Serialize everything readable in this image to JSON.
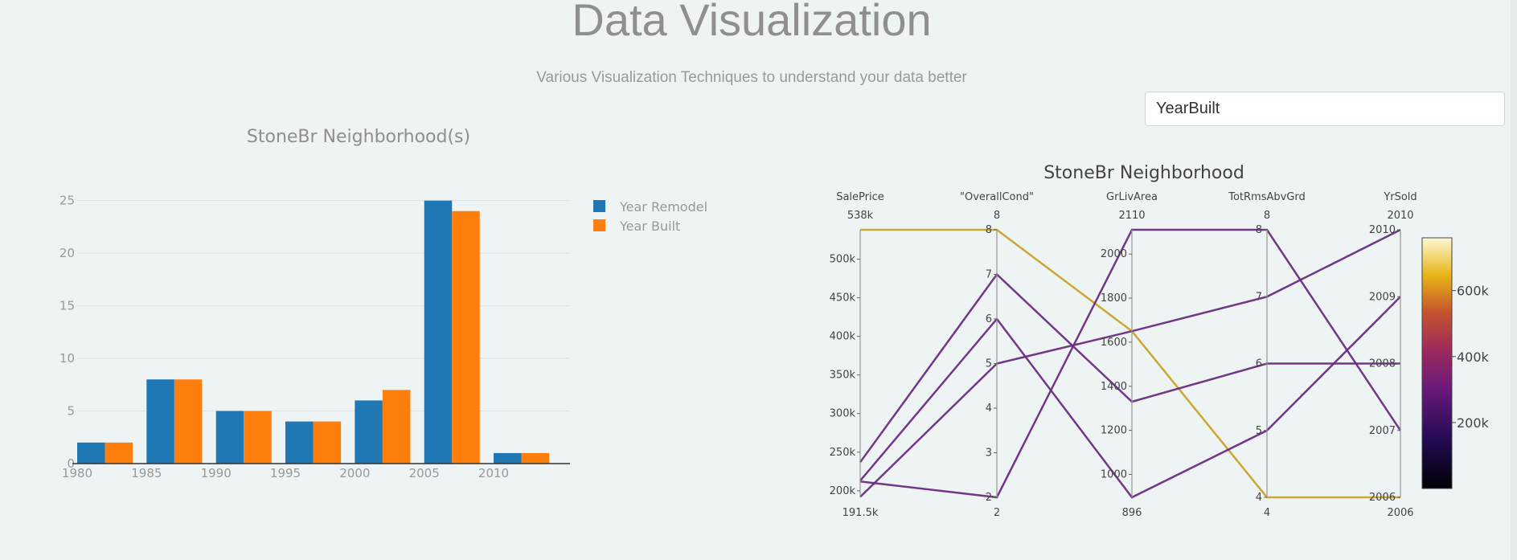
{
  "page": {
    "title": "Data Visualization",
    "subtitle": "Various Visualization Techniques to understand your data better"
  },
  "dropdown": {
    "selected": "YearBuilt"
  },
  "colors": {
    "blue": "#1f77b4",
    "orange": "#ff7f0e",
    "gold_line": "#c9a227",
    "purple_line": "#6a2c82"
  },
  "chart_data": [
    {
      "type": "bar",
      "title": "StoneBr Neighborhood(s)",
      "x": [
        1982,
        1987,
        1992,
        1997,
        2002,
        2007,
        2012
      ],
      "x_ticks": [
        1980,
        1985,
        1990,
        1995,
        2000,
        2005,
        2010
      ],
      "y_ticks": [
        0,
        5,
        10,
        15,
        20,
        25
      ],
      "ylim": [
        0,
        26.5
      ],
      "xlim": [
        1980,
        2015.5
      ],
      "grid": true,
      "legend_position": "top-right",
      "series": [
        {
          "name": "Year Remodel",
          "values": [
            2,
            8,
            5,
            4,
            6,
            25,
            1
          ]
        },
        {
          "name": "Year Built",
          "values": [
            2,
            8,
            5,
            4,
            7,
            24,
            1
          ]
        }
      ]
    },
    {
      "type": "parallel_coordinates",
      "title": "StoneBr Neighborhood",
      "colorscale_ticks": [
        "200k",
        "400k",
        "600k"
      ],
      "color_range": [
        0,
        760000
      ],
      "dimensions": [
        {
          "label": "SalePrice",
          "range": [
            191500,
            538000
          ],
          "max_label": "538k",
          "min_label": "191.5k",
          "ticks": [
            200000,
            250000,
            300000,
            350000,
            400000,
            450000,
            500000
          ],
          "tick_labels": [
            "200k",
            "250k",
            "300k",
            "350k",
            "400k",
            "450k",
            "500k"
          ]
        },
        {
          "label": "\"OverallCond\"",
          "range": [
            2,
            8
          ],
          "max_label": "8",
          "min_label": "2",
          "ticks": [
            2,
            3,
            4,
            5,
            6,
            7,
            8
          ],
          "tick_labels": [
            "2",
            "3",
            "4",
            "5",
            "6",
            "7",
            "8"
          ]
        },
        {
          "label": "GrLivArea",
          "range": [
            896,
            2110
          ],
          "max_label": "2110",
          "min_label": "896",
          "ticks": [
            1000,
            1200,
            1400,
            1600,
            1800,
            2000
          ],
          "tick_labels": [
            "1000",
            "1200",
            "1400",
            "1600",
            "1800",
            "2000"
          ]
        },
        {
          "label": "TotRmsAbvGrd",
          "range": [
            4,
            8
          ],
          "max_label": "8",
          "min_label": "4",
          "ticks": [
            4,
            5,
            6,
            7,
            8
          ],
          "tick_labels": [
            "4",
            "5",
            "6",
            "7",
            "8"
          ]
        },
        {
          "label": "YrSold",
          "range": [
            2006,
            2010
          ],
          "max_label": "2010",
          "min_label": "2006",
          "ticks": [
            2006,
            2007,
            2008,
            2009,
            2010
          ],
          "tick_labels": [
            "2006",
            "2007",
            "2008",
            "2009",
            "2010"
          ]
        }
      ],
      "rows": [
        {
          "values": [
            538000,
            8,
            1650,
            4,
            2006
          ],
          "color": "gold"
        },
        {
          "values": [
            237000,
            7,
            1330,
            6,
            2008
          ],
          "color": "purple"
        },
        {
          "values": [
            213000,
            6,
            896,
            5,
            2009
          ],
          "color": "purple"
        },
        {
          "values": [
            212000,
            2,
            2110,
            8,
            2007
          ],
          "color": "purple"
        },
        {
          "values": [
            192000,
            5,
            1650,
            7,
            2010
          ],
          "color": "purple"
        }
      ]
    }
  ]
}
